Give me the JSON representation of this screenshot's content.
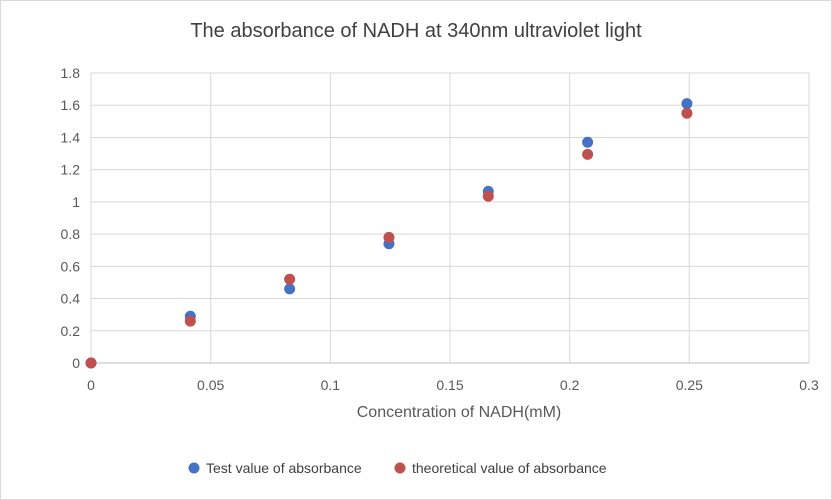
{
  "chart_data": {
    "type": "scatter",
    "title": "The absorbance of NADH at 340nm ultraviolet light",
    "xlabel": "Concentration of NADH(mM)",
    "ylabel": "",
    "xlim": [
      0,
      0.3
    ],
    "ylim": [
      0,
      1.8
    ],
    "xticks": [
      "0",
      "0.05",
      "0.1",
      "0.15",
      "0.2",
      "0.25",
      "0.3"
    ],
    "yticks": [
      "0",
      "0.2",
      "0.4",
      "0.6",
      "0.8",
      "1",
      "1.2",
      "1.4",
      "1.6",
      "1.8"
    ],
    "grid": true,
    "legend_position": "bottom",
    "series": [
      {
        "name": "Test value of absorbance",
        "color": "#4472C4",
        "x": [
          0,
          0.0415,
          0.083,
          0.1245,
          0.166,
          0.2075,
          0.249
        ],
        "y": [
          0,
          0.29,
          0.46,
          0.74,
          1.065,
          1.37,
          1.61
        ]
      },
      {
        "name": "theoretical value of absorbance",
        "color": "#C0504D",
        "x": [
          0,
          0.0415,
          0.083,
          0.1245,
          0.166,
          0.2075,
          0.249
        ],
        "y": [
          0,
          0.26,
          0.52,
          0.78,
          1.035,
          1.295,
          1.55
        ]
      }
    ]
  }
}
